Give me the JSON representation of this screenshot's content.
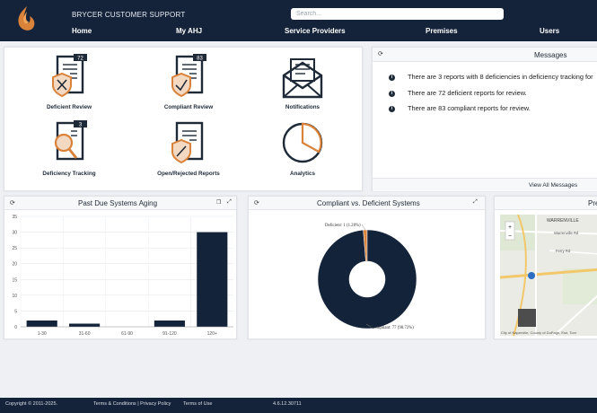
{
  "header": {
    "brand": "BRYCER CUSTOMER SUPPORT",
    "search_placeholder": "Search...",
    "nav": [
      "Home",
      "My AHJ",
      "Service Providers",
      "Premises",
      "Users"
    ]
  },
  "tiles": [
    {
      "label": "Deficient Review",
      "icon": "deficient-review-icon",
      "badge": "72"
    },
    {
      "label": "Compliant Review",
      "icon": "compliant-review-icon",
      "badge": "83"
    },
    {
      "label": "Notifications",
      "icon": "envelope-icon",
      "badge": ""
    },
    {
      "label": "Deficiency Tracking",
      "icon": "deficiency-tracking-icon",
      "badge": "3"
    },
    {
      "label": "Open/Rejected Reports",
      "icon": "open-rejected-reports-icon",
      "badge": ""
    },
    {
      "label": "Analytics",
      "icon": "pie-chart-icon",
      "badge": ""
    }
  ],
  "messages": {
    "title": "Messages",
    "items": [
      "There are 3 reports with 8 deficiencies in deficiency tracking for",
      "There are 72 deficient reports for review.",
      "There are 83 compliant reports for review."
    ],
    "view_all": "View All Messages"
  },
  "aging": {
    "title": "Past Due Systems Aging"
  },
  "compliance": {
    "title": "Compliant vs. Deficient Systems"
  },
  "map": {
    "title": "Pre",
    "labels": [
      "WARRENVILLE",
      "Warrenville Rd",
      "Ferry Rd",
      "City of Naperville, County of DuPage, Esri, Tom"
    ]
  },
  "footer": {
    "copyright": "Copyright © 2011-2025.",
    "terms": "Terms & Conditions | Privacy Policy",
    "terms_of_use": "Terms of Use",
    "version": "4.6.12.30711"
  },
  "colors": {
    "navy": "#14233a",
    "accent": "#d9823a",
    "chart_navy": "#13233a"
  },
  "chart_data": [
    {
      "type": "bar",
      "title": "Past Due Systems Aging",
      "categories": [
        "1-30",
        "31-60",
        "61-90",
        "91-120",
        "120+"
      ],
      "values": [
        2,
        1,
        0,
        2,
        30
      ],
      "ylim": [
        0,
        35
      ],
      "yticks": [
        "0",
        "5",
        "10",
        "15",
        "20",
        "25",
        "30",
        "35"
      ],
      "grid": true
    },
    {
      "type": "pie",
      "title": "Compliant vs. Deficient Systems",
      "labels": [
        "Deficient: 1 (1.28%)",
        "Compliant: 77 (98.72%)"
      ],
      "values": [
        1,
        77
      ],
      "colors": [
        "#d9823a",
        "#13233a"
      ]
    }
  ]
}
